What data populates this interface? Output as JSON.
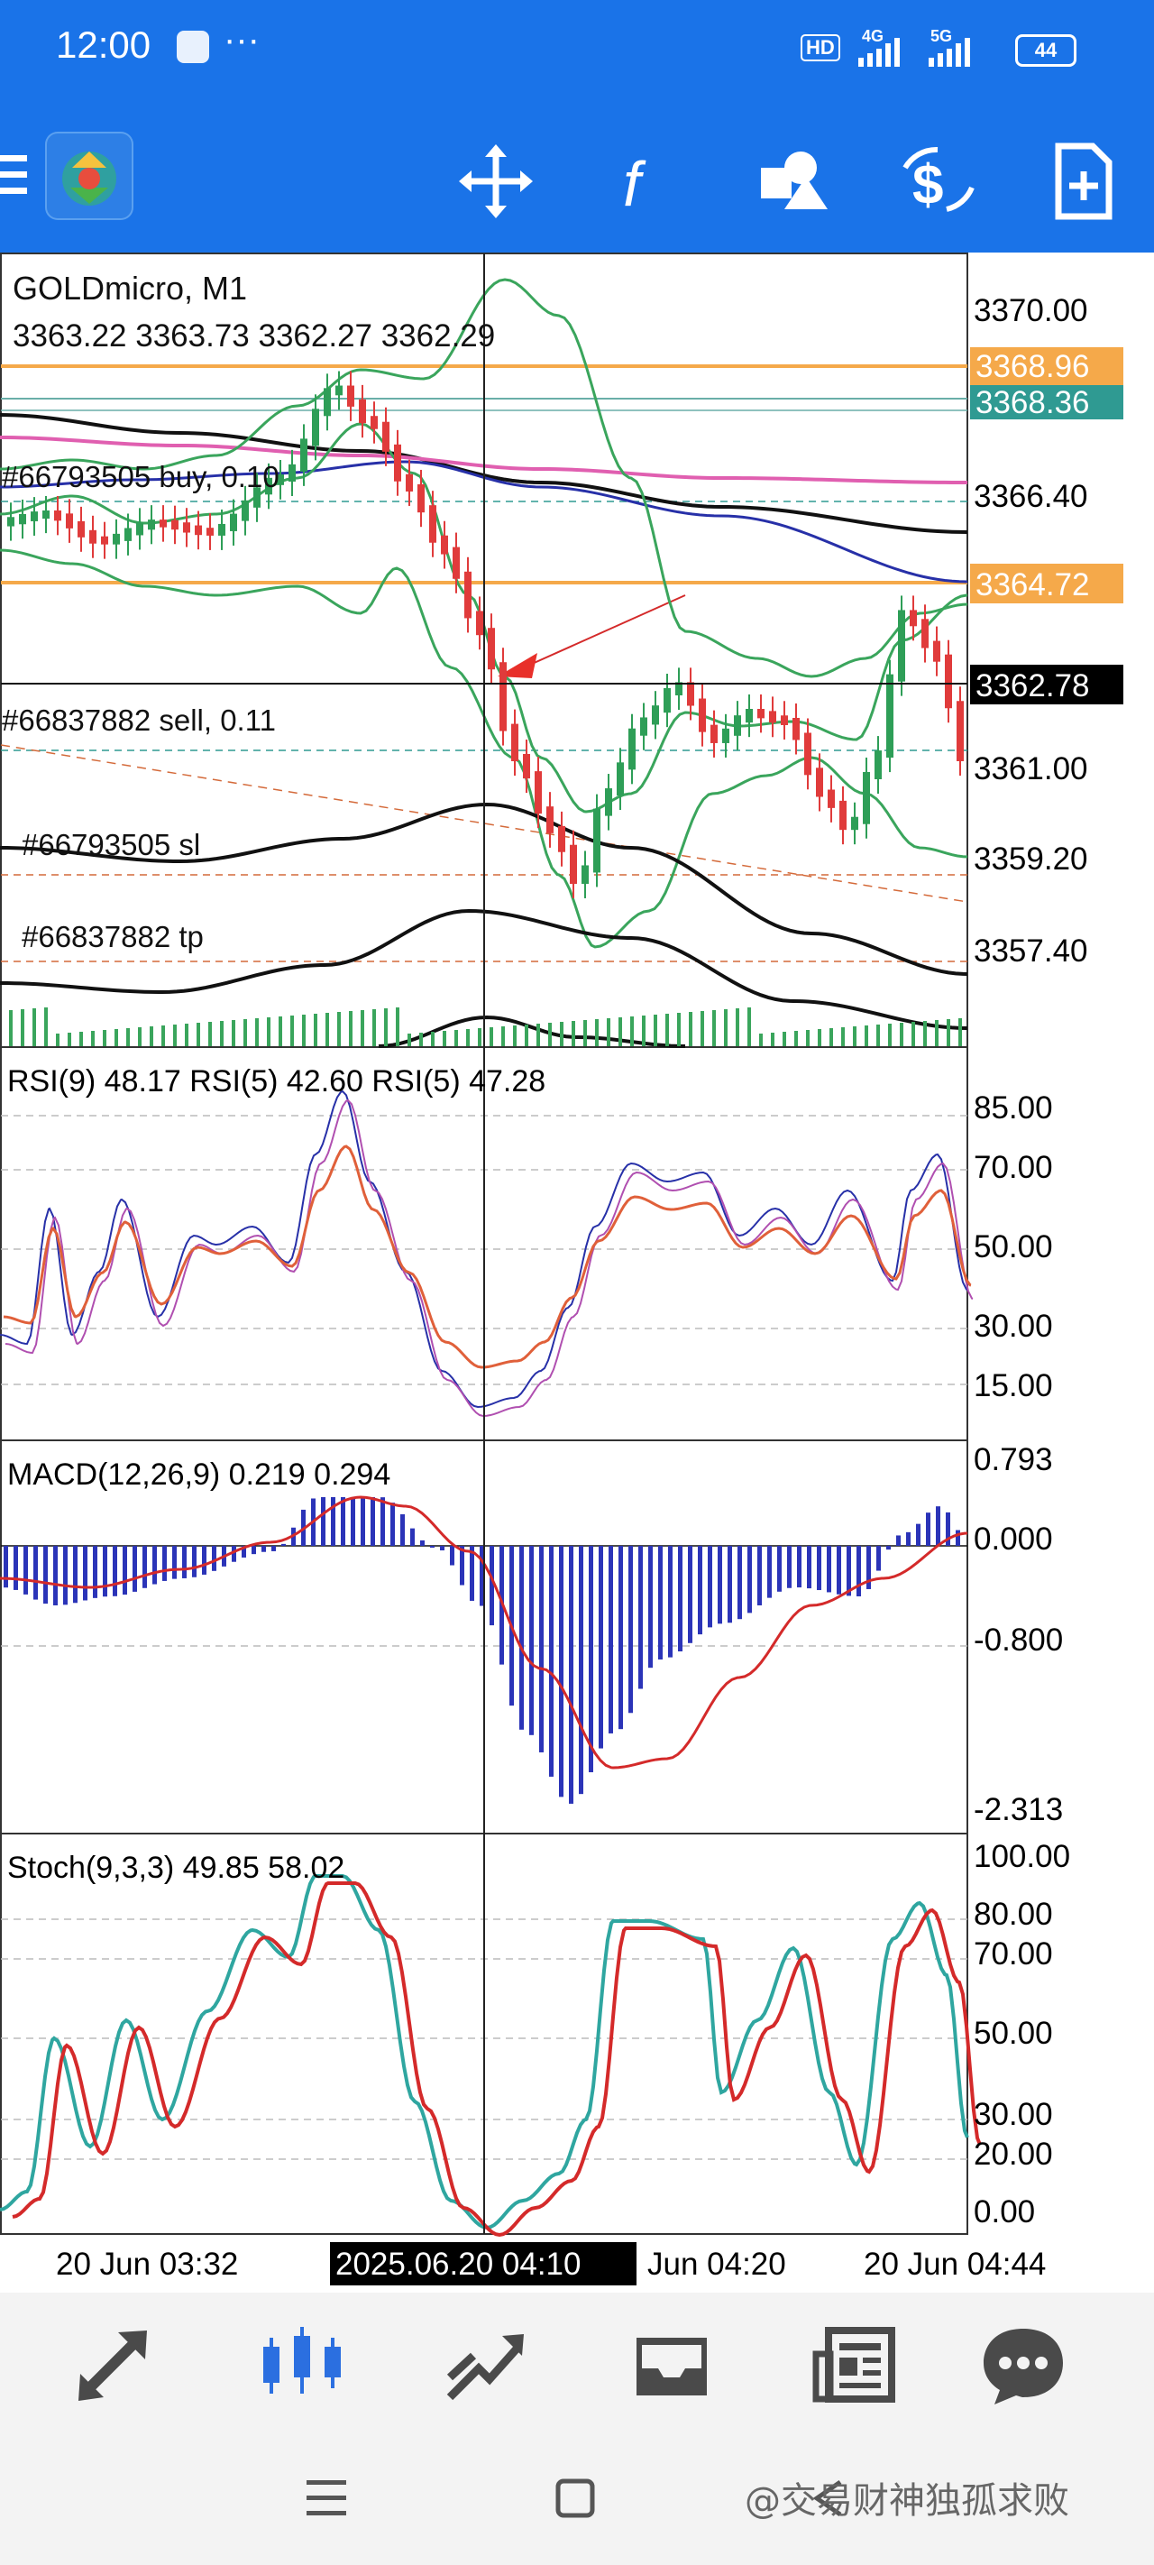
{
  "status_bar": {
    "time": "12:00",
    "more": "···",
    "hd_badge": "HD",
    "network_1": "4G",
    "network_2": "5G",
    "battery": "44"
  },
  "toolbar": {
    "menu_icon": "hamburger-menu-icon",
    "logo_icon": "metatrader-logo-icon",
    "tools": [
      "crosshair-move-icon",
      "function-f-icon",
      "objects-shapes-icon",
      "dollar-trade-icon",
      "new-order-icon"
    ]
  },
  "main_chart": {
    "symbol": "GOLDmicro, M1",
    "ohlc": "3363.22 3363.73 3362.27 3362.29",
    "price_ticks": [
      "3370.00",
      "3366.40",
      "3361.00",
      "3359.20",
      "3357.40"
    ],
    "price_tags": {
      "tag1": "3368.96",
      "tag2": "3368.36",
      "tag3": "3364.72",
      "current": "3362.78"
    },
    "orders": {
      "buy": "#66793505 buy, 0.10",
      "sell": "#66837882 sell, 0.11",
      "sl": "#66793505 sl",
      "tp": "#66837882 tp"
    }
  },
  "rsi": {
    "label": "RSI(9) 48.17 RSI(5) 42.60 RSI(5) 47.28",
    "ticks": [
      "85.00",
      "70.00",
      "50.00",
      "30.00",
      "15.00"
    ]
  },
  "macd": {
    "label": "MACD(12,26,9) 0.219 0.294",
    "ticks": [
      "0.793",
      "0.000",
      "-0.800",
      "-2.313"
    ]
  },
  "stoch": {
    "label": "Stoch(9,3,3) 49.85 58.02",
    "ticks": [
      "100.00",
      "80.00",
      "70.00",
      "50.00",
      "30.00",
      "20.00",
      "0.00"
    ]
  },
  "time_axis": {
    "labels": [
      "20 Jun 03:32",
      "Jun 04:20",
      "20 Jun 04:44"
    ],
    "crosshair": "2025.06.20 04:10"
  },
  "bottom_nav": [
    "quotes-arrows-icon",
    "chart-candles-icon",
    "trade-line-icon",
    "history-inbox-icon",
    "news-icon",
    "chat-bubble-icon"
  ],
  "sys_nav": {
    "watermark": "@交易财神独孤求败"
  },
  "colors": {
    "brand": "#1a73e8",
    "bull": "#2e9e57",
    "bear": "#e03b3b",
    "orange_line": "#f5a94a",
    "teal_tag": "#2f9a92",
    "bollinger": "#3aa55c",
    "magenta_ma": "#e05fb0",
    "navy_ma": "#2730a8",
    "macd_hist": "#2b34b8",
    "signal": "#d42a2a",
    "stoch_main": "#2fa6a0"
  }
}
